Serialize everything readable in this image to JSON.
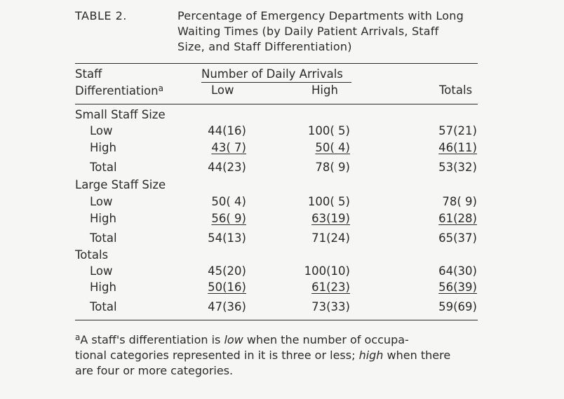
{
  "caption": {
    "label": "TABLE 2.",
    "title_lines": [
      "Percentage of Emergency Departments with Long",
      "Waiting Times (by Daily Patient Arrivals, Staff",
      "Size, and Staff Differentiation)"
    ]
  },
  "header": {
    "stub_line1": "Staff",
    "stub_line2": "Differentiation",
    "stub_mark": "a",
    "group": "Number of Daily Arrivals",
    "col_low": "Low",
    "col_high": "High",
    "col_totals": "Totals"
  },
  "sections": [
    {
      "title": "Small Staff Size",
      "rows": [
        {
          "label": "Low",
          "low": "44(16)",
          "high": "100( 5)",
          "total": "57(21)"
        },
        {
          "label": "High",
          "low": "43( 7)",
          "high": "50( 4)",
          "total": "46(11)"
        },
        {
          "label": "Total",
          "low": "44(23)",
          "high": "78( 9)",
          "total": "53(32)"
        }
      ]
    },
    {
      "title": "Large Staff Size",
      "rows": [
        {
          "label": "Low",
          "low": "50( 4)",
          "high": "100( 5)",
          "total": "78( 9)"
        },
        {
          "label": "High",
          "low": "56( 9)",
          "high": "63(19)",
          "total": "61(28)"
        },
        {
          "label": "Total",
          "low": "54(13)",
          "high": "71(24)",
          "total": "65(37)"
        }
      ]
    },
    {
      "title": "Totals",
      "rows": [
        {
          "label": "Low",
          "low": "45(20)",
          "high": "100(10)",
          "total": "64(30)"
        },
        {
          "label": "High",
          "low": "50(16)",
          "high": "61(23)",
          "total": "56(39)"
        },
        {
          "label": "Total",
          "low": "47(36)",
          "high": "73(33)",
          "total": "59(69)"
        }
      ]
    }
  ],
  "footnote": {
    "mark": "a",
    "line1_a": "A staff's differentiation is ",
    "line1_em": "low",
    "line1_b": " when the number of occupa-",
    "line2_a": "tional categories represented in it is three or less; ",
    "line2_em": "high",
    "line2_b": " when there",
    "line3": "are four or more categories."
  }
}
